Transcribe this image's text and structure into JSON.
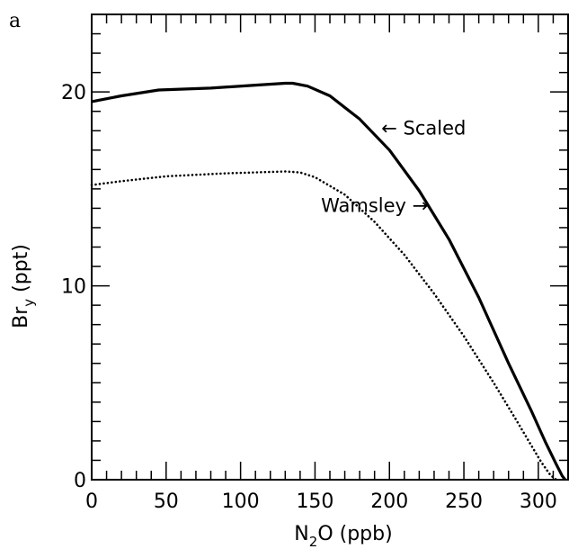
{
  "panel_label": "a",
  "chart_data": {
    "type": "line",
    "title": "",
    "xlabel": {
      "main": "N",
      "sub": "2",
      "rest": "O (ppb)"
    },
    "ylabel": {
      "main": "Br",
      "sub": "y",
      "rest": " (ppt)"
    },
    "xlim": [
      0,
      320
    ],
    "ylim": [
      0,
      24
    ],
    "x_ticks": [
      0,
      50,
      100,
      150,
      200,
      250,
      300
    ],
    "y_ticks": [
      0,
      10,
      20
    ],
    "x_minor_step": 10,
    "y_minor_step": 1,
    "grid": false,
    "series": [
      {
        "name": "Scaled",
        "style": "solid",
        "color": "#000000",
        "x": [
          0,
          20,
          45,
          80,
          110,
          130,
          135,
          145,
          160,
          180,
          200,
          220,
          240,
          260,
          280,
          295,
          305,
          312,
          316,
          318
        ],
        "y": [
          19.5,
          19.8,
          20.1,
          20.2,
          20.35,
          20.45,
          20.45,
          20.3,
          19.8,
          18.6,
          17.0,
          14.9,
          12.4,
          9.4,
          6.0,
          3.6,
          1.9,
          0.8,
          0.2,
          0
        ]
      },
      {
        "name": "Wamsley",
        "style": "dotted",
        "color": "#000000",
        "x": [
          0,
          20,
          50,
          90,
          130,
          140,
          150,
          170,
          190,
          210,
          230,
          250,
          270,
          285,
          295,
          302,
          308,
          312
        ],
        "y": [
          15.2,
          15.4,
          15.65,
          15.8,
          15.9,
          15.85,
          15.6,
          14.7,
          13.3,
          11.6,
          9.6,
          7.4,
          5.0,
          3.1,
          1.8,
          0.9,
          0.25,
          0
        ]
      }
    ],
    "annotations": [
      {
        "text": "← Scaled",
        "x": 223,
        "y": 17.8
      },
      {
        "text": "Wamsley →",
        "x": 190,
        "y": 13.8
      }
    ]
  }
}
